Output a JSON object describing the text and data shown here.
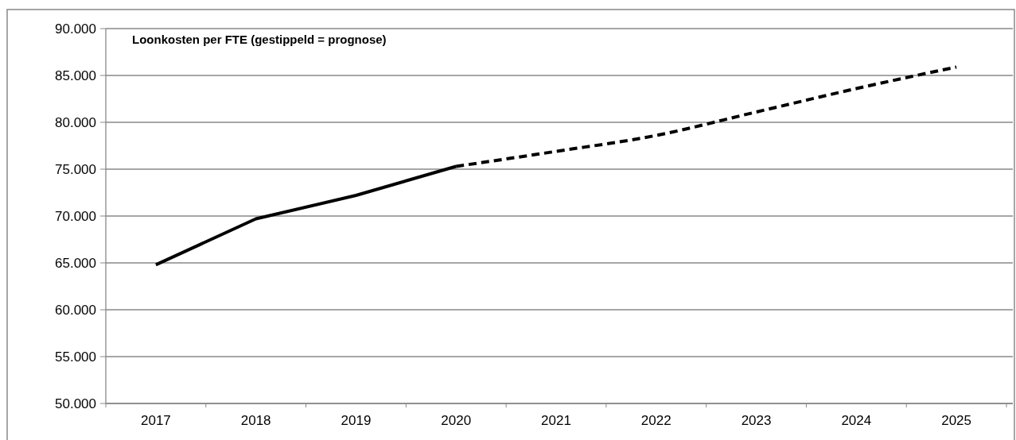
{
  "chart_data": {
    "type": "line",
    "title": "Loonkosten per FTE (gestippeld = prognose)",
    "categories": [
      "2017",
      "2018",
      "2019",
      "2020",
      "2021",
      "2022",
      "2023",
      "2024",
      "2025"
    ],
    "series": [
      {
        "color": "#000000",
        "line_style": "solid",
        "values": [
          64800,
          69700,
          72200,
          75300,
          null,
          null,
          null,
          null,
          null
        ]
      },
      {
        "color": "#000000",
        "line_style": "dashed",
        "values": [
          null,
          null,
          null,
          75300,
          76900,
          78600,
          81100,
          83600,
          85900
        ]
      }
    ],
    "ylim": [
      50000,
      90000
    ],
    "yticks": [
      {
        "value": 50000,
        "label": "50.000"
      },
      {
        "value": 55000,
        "label": "55.000"
      },
      {
        "value": 60000,
        "label": "60.000"
      },
      {
        "value": 65000,
        "label": "65.000"
      },
      {
        "value": 70000,
        "label": "70.000"
      },
      {
        "value": 75000,
        "label": "75.000"
      },
      {
        "value": 80000,
        "label": "80.000"
      },
      {
        "value": 85000,
        "label": "85.000"
      },
      {
        "value": 90000,
        "label": "90.000"
      }
    ],
    "grid": "y",
    "marker": "none"
  }
}
